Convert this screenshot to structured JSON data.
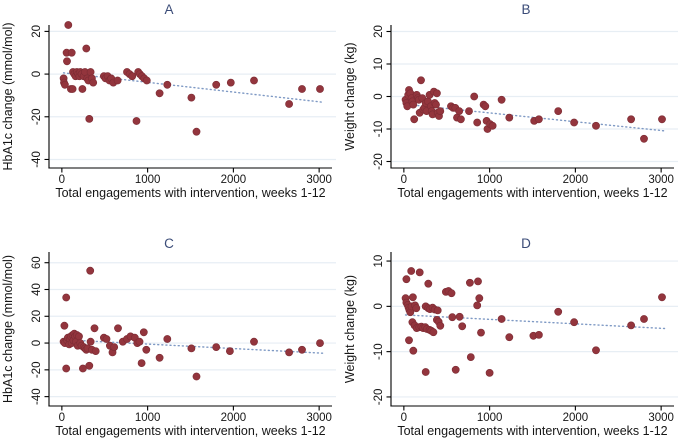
{
  "figure": {
    "description": "Four-panel scatter plots of engagement vs clinical outcome change with dotted linear fit",
    "background": "#ffffff"
  },
  "colors": {
    "marker": "#93353d",
    "marker_edge": "#7c2c34",
    "trend_line": "#7e99c4",
    "gridline": "#e7eef4",
    "axis": "#000000",
    "title": "#3b4c78",
    "text": "#161616"
  },
  "chart_data": [
    {
      "type": "scatter",
      "title": "A",
      "xlabel": "Total engagements with intervention, weeks 1-12",
      "ylabel": "HbA1c change (mmol/mol)",
      "xlim": [
        -150,
        3150
      ],
      "ylim": [
        -44,
        23
      ],
      "xticks": [
        0,
        1000,
        2000,
        3000
      ],
      "yticks": [
        -40,
        -20,
        0,
        20
      ],
      "grid": true,
      "legend": "none",
      "trend": {
        "style": "dotted",
        "x": [
          20,
          3050
        ],
        "y": [
          0.6,
          -13.2
        ]
      },
      "points": [
        [
          20,
          -2
        ],
        [
          25,
          -4
        ],
        [
          35,
          -5
        ],
        [
          55,
          10
        ],
        [
          60,
          6
        ],
        [
          75,
          23
        ],
        [
          115,
          10
        ],
        [
          105,
          -7
        ],
        [
          125,
          -7
        ],
        [
          130,
          1
        ],
        [
          145,
          0
        ],
        [
          160,
          -1
        ],
        [
          175,
          1
        ],
        [
          190,
          0
        ],
        [
          205,
          -1
        ],
        [
          215,
          1
        ],
        [
          230,
          0
        ],
        [
          240,
          -7
        ],
        [
          255,
          -1
        ],
        [
          270,
          1
        ],
        [
          285,
          12
        ],
        [
          295,
          -2
        ],
        [
          310,
          -3
        ],
        [
          320,
          -21
        ],
        [
          335,
          1
        ],
        [
          350,
          -2
        ],
        [
          365,
          -4
        ],
        [
          490,
          -1
        ],
        [
          510,
          -2
        ],
        [
          535,
          -1
        ],
        [
          555,
          -3
        ],
        [
          575,
          -2
        ],
        [
          600,
          -4
        ],
        [
          650,
          -3
        ],
        [
          760,
          1
        ],
        [
          790,
          0
        ],
        [
          820,
          -1
        ],
        [
          870,
          -22
        ],
        [
          890,
          1
        ],
        [
          910,
          0
        ],
        [
          935,
          -1
        ],
        [
          960,
          -2
        ],
        [
          990,
          -3
        ],
        [
          1140,
          -9
        ],
        [
          1230,
          -5
        ],
        [
          1510,
          -11
        ],
        [
          1570,
          -27
        ],
        [
          1800,
          -5
        ],
        [
          1970,
          -4
        ],
        [
          2240,
          -3
        ],
        [
          2650,
          -14
        ],
        [
          2800,
          -7
        ],
        [
          3010,
          -7
        ]
      ]
    },
    {
      "type": "scatter",
      "title": "B",
      "xlabel": "Total engagements with intervention, weeks 1-12",
      "ylabel": "Weight change (kg)",
      "xlim": [
        -150,
        3150
      ],
      "ylim": [
        -22,
        22
      ],
      "xticks": [
        0,
        1000,
        2000,
        3000
      ],
      "yticks": [
        -20,
        -10,
        0,
        10,
        20
      ],
      "grid": true,
      "legend": "none",
      "trend": {
        "style": "dotted",
        "x": [
          20,
          3050
        ],
        "y": [
          -2.4,
          -10.6
        ]
      },
      "points": [
        [
          20,
          -1
        ],
        [
          30,
          -2
        ],
        [
          40,
          -3
        ],
        [
          50,
          0.5
        ],
        [
          60,
          2
        ],
        [
          75,
          1
        ],
        [
          90,
          -0.5
        ],
        [
          100,
          -1.5
        ],
        [
          110,
          -2.5
        ],
        [
          120,
          -7
        ],
        [
          150,
          0.5
        ],
        [
          165,
          -0.5
        ],
        [
          175,
          -1
        ],
        [
          185,
          -5
        ],
        [
          200,
          5
        ],
        [
          215,
          -0.5
        ],
        [
          225,
          -4
        ],
        [
          240,
          -3.5
        ],
        [
          255,
          -2
        ],
        [
          265,
          -4.5
        ],
        [
          280,
          -1.5
        ],
        [
          300,
          0.5
        ],
        [
          315,
          -3
        ],
        [
          325,
          -4.5
        ],
        [
          335,
          -5.5
        ],
        [
          350,
          1.5
        ],
        [
          360,
          -2
        ],
        [
          375,
          -2.5
        ],
        [
          385,
          1
        ],
        [
          395,
          -5
        ],
        [
          410,
          -6
        ],
        [
          425,
          -4.5
        ],
        [
          550,
          -3
        ],
        [
          575,
          -3.5
        ],
        [
          600,
          -3.5
        ],
        [
          620,
          -6.5
        ],
        [
          645,
          -4.5
        ],
        [
          665,
          -7
        ],
        [
          760,
          -4.5
        ],
        [
          820,
          0
        ],
        [
          855,
          -8
        ],
        [
          930,
          -2.5
        ],
        [
          950,
          -3
        ],
        [
          965,
          -7.5
        ],
        [
          975,
          -10
        ],
        [
          1005,
          -8.5
        ],
        [
          1035,
          -9
        ],
        [
          1140,
          -1
        ],
        [
          1230,
          -6.5
        ],
        [
          1520,
          -7.5
        ],
        [
          1575,
          -7
        ],
        [
          1800,
          -4.5
        ],
        [
          1985,
          -8
        ],
        [
          2240,
          -9
        ],
        [
          2650,
          -7
        ],
        [
          2800,
          -13
        ],
        [
          3010,
          -7
        ]
      ]
    },
    {
      "type": "scatter",
      "title": "C",
      "xlabel": "Total engagements with intervention, weeks 1-12",
      "ylabel": "HbA1c change (mmol/mol)",
      "xlim": [
        -150,
        3150
      ],
      "ylim": [
        -47,
        68
      ],
      "xticks": [
        0,
        1000,
        2000,
        3000
      ],
      "yticks": [
        -40,
        -20,
        0,
        20,
        40,
        60
      ],
      "grid": true,
      "legend": "none",
      "trend": {
        "style": "dotted",
        "x": [
          20,
          3050
        ],
        "y": [
          2.5,
          -7.6
        ]
      },
      "points": [
        [
          30,
          13
        ],
        [
          50,
          34
        ],
        [
          330,
          54
        ],
        [
          20,
          1
        ],
        [
          35,
          0
        ],
        [
          50,
          -19
        ],
        [
          60,
          2
        ],
        [
          70,
          4
        ],
        [
          85,
          -1
        ],
        [
          95,
          3
        ],
        [
          105,
          5
        ],
        [
          115,
          0
        ],
        [
          125,
          6
        ],
        [
          135,
          2
        ],
        [
          145,
          7
        ],
        [
          155,
          5
        ],
        [
          165,
          1
        ],
        [
          175,
          6
        ],
        [
          185,
          -2
        ],
        [
          200,
          5
        ],
        [
          215,
          0
        ],
        [
          230,
          -2
        ],
        [
          245,
          -19
        ],
        [
          255,
          -3
        ],
        [
          270,
          -4
        ],
        [
          285,
          -5
        ],
        [
          300,
          -4
        ],
        [
          320,
          -17
        ],
        [
          335,
          1
        ],
        [
          350,
          -5
        ],
        [
          380,
          11
        ],
        [
          395,
          -6
        ],
        [
          490,
          4
        ],
        [
          520,
          3
        ],
        [
          560,
          -2
        ],
        [
          590,
          -7
        ],
        [
          610,
          -3
        ],
        [
          655,
          11
        ],
        [
          710,
          1
        ],
        [
          760,
          3
        ],
        [
          800,
          5
        ],
        [
          850,
          4
        ],
        [
          880,
          0
        ],
        [
          905,
          1
        ],
        [
          930,
          -15
        ],
        [
          955,
          8
        ],
        [
          985,
          -5
        ],
        [
          1140,
          -11
        ],
        [
          1230,
          3
        ],
        [
          1510,
          -4
        ],
        [
          1570,
          -25
        ],
        [
          1800,
          -3
        ],
        [
          1960,
          -6
        ],
        [
          2240,
          1
        ],
        [
          2650,
          -7
        ],
        [
          2800,
          -5
        ],
        [
          3010,
          0
        ]
      ]
    },
    {
      "type": "scatter",
      "title": "D",
      "xlabel": "Total engagements with intervention, weeks 1-12",
      "ylabel": "Weight change (kg)",
      "xlim": [
        -150,
        3150
      ],
      "ylim": [
        -22,
        12
      ],
      "xticks": [
        0,
        1000,
        2000,
        3000
      ],
      "yticks": [
        -20,
        -10,
        0,
        10
      ],
      "grid": true,
      "legend": "none",
      "trend": {
        "style": "dotted",
        "x": [
          20,
          3050
        ],
        "y": [
          -1.9,
          -4.9
        ]
      },
      "points": [
        [
          30,
          6
        ],
        [
          85,
          7.8
        ],
        [
          185,
          7.5
        ],
        [
          285,
          5
        ],
        [
          20,
          1.8
        ],
        [
          30,
          0.8
        ],
        [
          45,
          0.3
        ],
        [
          55,
          -0.3
        ],
        [
          65,
          -0.8
        ],
        [
          75,
          -1.3
        ],
        [
          90,
          0
        ],
        [
          105,
          2
        ],
        [
          130,
          0.2
        ],
        [
          145,
          -0.4
        ],
        [
          60,
          -7.5
        ],
        [
          110,
          -9.8
        ],
        [
          100,
          -3.5
        ],
        [
          125,
          -4.2
        ],
        [
          150,
          -4.8
        ],
        [
          180,
          -4.6
        ],
        [
          205,
          -4.5
        ],
        [
          225,
          -4.8
        ],
        [
          250,
          -4.6
        ],
        [
          270,
          -5
        ],
        [
          300,
          -5.2
        ],
        [
          320,
          -5.4
        ],
        [
          345,
          -5.7
        ],
        [
          255,
          -14.5
        ],
        [
          255,
          0
        ],
        [
          285,
          -0.4
        ],
        [
          305,
          -0.6
        ],
        [
          335,
          -0.3
        ],
        [
          360,
          -0.7
        ],
        [
          395,
          -0.9
        ],
        [
          385,
          -3
        ],
        [
          405,
          -3.4
        ],
        [
          425,
          -4.3
        ],
        [
          490,
          3.2
        ],
        [
          520,
          3.4
        ],
        [
          555,
          2.9
        ],
        [
          565,
          -2.4
        ],
        [
          605,
          -14
        ],
        [
          650,
          -2.3
        ],
        [
          680,
          -4.4
        ],
        [
          780,
          -11.2
        ],
        [
          770,
          5.2
        ],
        [
          865,
          5.5
        ],
        [
          855,
          0.2
        ],
        [
          880,
          1.8
        ],
        [
          900,
          -5.8
        ],
        [
          1000,
          -14.7
        ],
        [
          1140,
          -2.8
        ],
        [
          1230,
          -6.8
        ],
        [
          1510,
          -6.5
        ],
        [
          1575,
          -6.3
        ],
        [
          1800,
          -1.2
        ],
        [
          1985,
          -3.5
        ],
        [
          2240,
          -9.7
        ],
        [
          2650,
          -4.2
        ],
        [
          2800,
          -2.8
        ],
        [
          3010,
          2
        ]
      ]
    }
  ]
}
